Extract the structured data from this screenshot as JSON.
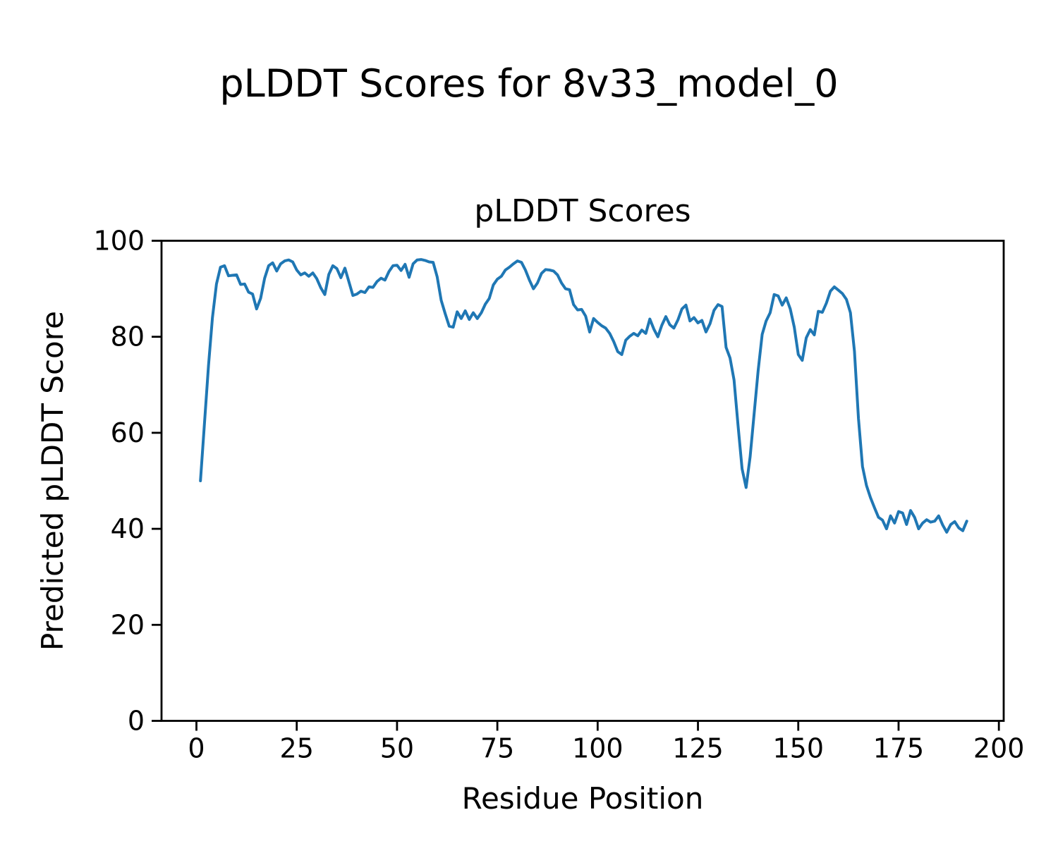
{
  "figure": {
    "suptitle": "pLDDT Scores for 8v33_model_0",
    "background": "#ffffff",
    "text_color": "#000000",
    "spine_color": "#000000"
  },
  "chart_data": {
    "type": "line",
    "title": "pLDDT Scores",
    "xlabel": "Residue Position",
    "ylabel": "Predicted pLDDT Score",
    "xlim": [
      -8.7,
      201.2
    ],
    "ylim": [
      0,
      100
    ],
    "xticks": [
      0,
      25,
      50,
      75,
      100,
      125,
      150,
      175,
      200
    ],
    "yticks": [
      0,
      20,
      40,
      60,
      80,
      100
    ],
    "grid": false,
    "legend": null,
    "series": [
      {
        "name": "pLDDT",
        "color": "#1f77b4",
        "line_width": 4,
        "x_start": 1,
        "x_step": 1,
        "values": [
          50.0,
          62.0,
          74.0,
          84.0,
          91.0,
          94.5,
          94.8,
          92.7,
          92.8,
          92.9,
          90.9,
          91.0,
          89.3,
          88.9,
          85.8,
          88.0,
          92.2,
          94.8,
          95.4,
          93.7,
          95.2,
          95.8,
          96.0,
          95.6,
          93.9,
          92.9,
          93.3,
          92.6,
          93.3,
          92.1,
          90.2,
          88.8,
          93.0,
          94.8,
          94.2,
          92.3,
          94.3,
          91.5,
          88.6,
          88.9,
          89.5,
          89.2,
          90.4,
          90.3,
          91.5,
          92.2,
          91.8,
          93.6,
          94.8,
          94.9,
          93.8,
          95.1,
          92.4,
          95.2,
          96.0,
          96.1,
          95.9,
          95.6,
          95.5,
          92.5,
          87.6,
          84.8,
          82.2,
          82.0,
          85.2,
          83.8,
          85.4,
          83.6,
          85.0,
          83.8,
          85.0,
          86.8,
          88.0,
          90.8,
          92.0,
          92.6,
          93.9,
          94.5,
          95.2,
          95.8,
          95.5,
          93.9,
          91.8,
          90.0,
          91.2,
          93.2,
          94.0,
          93.9,
          93.7,
          92.9,
          91.2,
          90.0,
          89.8,
          86.7,
          85.6,
          85.7,
          84.3,
          81.0,
          83.8,
          83.0,
          82.3,
          81.8,
          80.7,
          79.0,
          76.9,
          76.3,
          79.3,
          80.1,
          80.7,
          80.2,
          81.4,
          80.7,
          83.7,
          81.6,
          80.0,
          82.4,
          84.2,
          82.5,
          81.8,
          83.5,
          85.8,
          86.6,
          83.3,
          84.0,
          82.9,
          83.4,
          81.0,
          82.7,
          85.5,
          86.7,
          86.3,
          77.8,
          75.6,
          71.0,
          61.5,
          52.5,
          48.6,
          55.0,
          64.0,
          73.0,
          80.5,
          83.3,
          85.0,
          88.8,
          88.5,
          86.6,
          88.1,
          85.8,
          82.0,
          76.3,
          75.1,
          79.8,
          81.5,
          80.4,
          85.3,
          85.1,
          87.0,
          89.5,
          90.4,
          89.7,
          89.0,
          87.8,
          85.0,
          77.0,
          63.0,
          53.0,
          49.0,
          46.5,
          44.4,
          42.4,
          41.8,
          40.0,
          42.7,
          41.2,
          43.6,
          43.3,
          40.9,
          43.8,
          42.4,
          40.0,
          41.2,
          41.9,
          41.4,
          41.6,
          42.7,
          40.8,
          39.3,
          40.9,
          41.5,
          40.2,
          39.6,
          41.6
        ]
      }
    ]
  }
}
